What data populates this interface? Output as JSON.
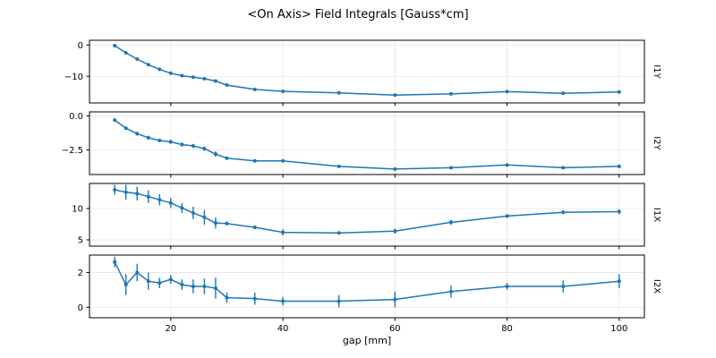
{
  "chart_data": {
    "type": "line",
    "title": "<On Axis> Field Integrals [Gauss*cm]",
    "xlabel": "gap [mm]",
    "color": "#1f77b4",
    "grid": true,
    "x": [
      10,
      12,
      14,
      16,
      18,
      20,
      22,
      24,
      26,
      28,
      30,
      35,
      40,
      50,
      60,
      70,
      80,
      90,
      100
    ],
    "xlim": [
      5.5,
      104.5
    ],
    "xticks": [
      {
        "v": 20,
        "label": "20"
      },
      {
        "v": 40,
        "label": "40"
      },
      {
        "v": 60,
        "label": "60"
      },
      {
        "v": 80,
        "label": "80"
      },
      {
        "v": 100,
        "label": "100"
      }
    ],
    "subplots": [
      {
        "ylabel": "I1Y",
        "ylim": [
          -18.5,
          1.5
        ],
        "yticks": [
          {
            "v": 0,
            "label": "0"
          },
          {
            "v": -10,
            "label": "−10"
          }
        ],
        "values": [
          -0.2,
          -2.5,
          -4.5,
          -6.3,
          -7.8,
          -9.0,
          -9.8,
          -10.3,
          -10.8,
          -11.5,
          -12.8,
          -14.2,
          -14.8,
          -15.3,
          -16.0,
          -15.6,
          -14.9,
          -15.4,
          -15.0
        ],
        "yerr": [
          0.3,
          0.3,
          0.3,
          0.3,
          0.3,
          0.3,
          0.3,
          0.3,
          0.3,
          0.3,
          0.3,
          0.3,
          0.3,
          0.3,
          0.3,
          0.3,
          0.3,
          0.3,
          0.3
        ]
      },
      {
        "ylabel": "I2Y",
        "ylim": [
          -4.3,
          0.3
        ],
        "yticks": [
          {
            "v": 0,
            "label": "0.0"
          },
          {
            "v": -2.5,
            "label": "−2.5"
          }
        ],
        "values": [
          -0.3,
          -0.9,
          -1.3,
          -1.6,
          -1.8,
          -1.9,
          -2.1,
          -2.2,
          -2.4,
          -2.8,
          -3.1,
          -3.3,
          -3.3,
          -3.7,
          -3.9,
          -3.8,
          -3.6,
          -3.8,
          -3.7
        ],
        "yerr": [
          0.12,
          0.12,
          0.15,
          0.15,
          0.12,
          0.15,
          0.15,
          0.15,
          0.15,
          0.2,
          0.12,
          0.12,
          0.12,
          0.12,
          0.12,
          0.12,
          0.12,
          0.12,
          0.12
        ]
      },
      {
        "ylabel": "I1X",
        "ylim": [
          4,
          14
        ],
        "yticks": [
          {
            "v": 5,
            "label": "5"
          },
          {
            "v": 10,
            "label": "10"
          }
        ],
        "values": [
          13.0,
          12.6,
          12.4,
          11.9,
          11.4,
          10.9,
          10.1,
          9.3,
          8.6,
          7.7,
          7.6,
          7.0,
          6.2,
          6.1,
          6.4,
          7.8,
          8.8,
          9.4,
          9.5
        ],
        "yerr": [
          0.8,
          1.2,
          1.1,
          1.0,
          0.9,
          0.8,
          0.8,
          1.0,
          1.2,
          0.9,
          0.3,
          0.3,
          0.5,
          0.2,
          0.4,
          0.4,
          0.3,
          0.3,
          0.4
        ]
      },
      {
        "ylabel": "I2X",
        "ylim": [
          -0.6,
          3.0
        ],
        "yticks": [
          {
            "v": 0,
            "label": "0"
          },
          {
            "v": 2,
            "label": "2"
          }
        ],
        "values": [
          2.6,
          1.3,
          2.0,
          1.5,
          1.4,
          1.6,
          1.3,
          1.2,
          1.2,
          1.1,
          0.55,
          0.5,
          0.35,
          0.35,
          0.45,
          0.9,
          1.2,
          1.2,
          1.5
        ],
        "yerr": [
          0.3,
          0.6,
          0.5,
          0.5,
          0.3,
          0.25,
          0.3,
          0.4,
          0.45,
          0.6,
          0.3,
          0.35,
          0.25,
          0.35,
          0.45,
          0.35,
          0.2,
          0.35,
          0.4
        ]
      }
    ]
  }
}
